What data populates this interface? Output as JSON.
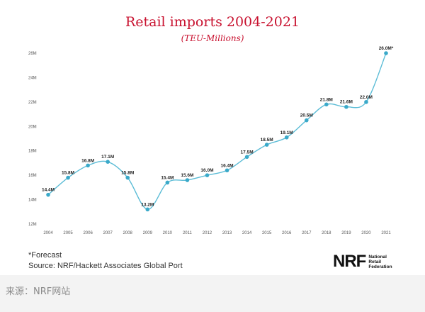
{
  "chart_data": {
    "type": "line",
    "title": "Retail imports 2004-2021",
    "subtitle": "(TEU-Millions)",
    "xlabel": "",
    "ylabel": "",
    "x": [
      "2004",
      "2005",
      "2006",
      "2007",
      "2008",
      "2009",
      "2010",
      "2011",
      "2012",
      "2013",
      "2014",
      "2015",
      "2016",
      "2017",
      "2018",
      "2019",
      "2020",
      "2021"
    ],
    "values": [
      14.4,
      15.8,
      16.8,
      17.1,
      15.8,
      13.2,
      15.4,
      15.6,
      16.0,
      16.4,
      17.5,
      18.5,
      19.1,
      20.5,
      21.8,
      21.6,
      22.0,
      26.0
    ],
    "data_labels": [
      "14.4M",
      "15.8M",
      "16.8M",
      "17.1M",
      "15.8M",
      "13.2M",
      "15.4M",
      "15.6M",
      "16.0M",
      "16.4M",
      "17.5M",
      "18.5M",
      "19.1M",
      "20.5M",
      "21.8M",
      "21.6M",
      "22.0M",
      "26.0M*"
    ],
    "yticks": [
      12,
      14,
      16,
      18,
      20,
      22,
      24,
      26
    ],
    "ytick_labels": [
      "12M",
      "14M",
      "16M",
      "18M",
      "20M",
      "22M",
      "24M",
      "26M"
    ],
    "ylim": [
      12,
      26
    ],
    "grid": false,
    "legend": "none",
    "line_color": "#5bbcd6",
    "marker_color": "#3aa9c9"
  },
  "footer": {
    "forecast_note": "*Forecast",
    "source": "Source: NRF/Hackett Associates Global Port"
  },
  "logo": {
    "mark": "NRF",
    "line1": "National",
    "line2": "Retail",
    "line3": "Federation"
  },
  "page_caption": "来源：NRF网站"
}
